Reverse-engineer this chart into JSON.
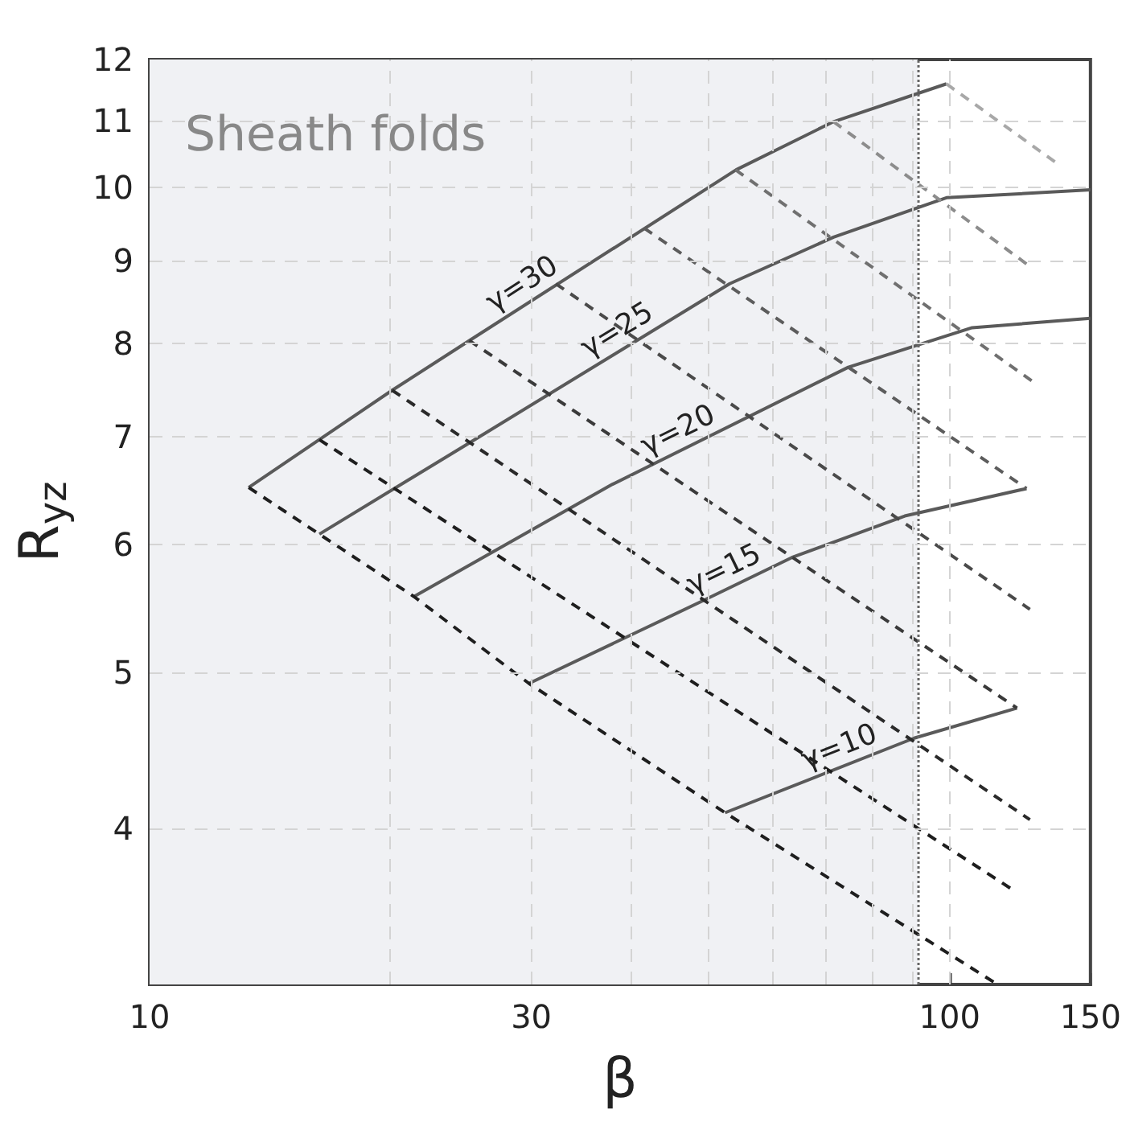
{
  "chart_data": {
    "type": "line",
    "xlabel": "β",
    "ylabel": "R$_{yz}$",
    "log": "xy",
    "xlim": [
      10,
      150
    ],
    "ylim": [
      3.2,
      12
    ],
    "xticks": [
      10,
      {
        "value": 20,
        "label": null
      },
      30,
      {
        "value": 40,
        "label": null
      },
      {
        "value": 50,
        "label": null
      },
      {
        "value": 60,
        "label": null
      },
      {
        "value": 70,
        "label": null
      },
      {
        "value": 80,
        "label": null
      },
      {
        "value": 90,
        "label": null
      },
      100,
      150
    ],
    "yticks": [
      4,
      5,
      6,
      7,
      8,
      9,
      10,
      11,
      12
    ],
    "grid": true,
    "legend": false,
    "marker": "none",
    "bands": [
      {
        "axis": "x",
        "from": 10,
        "to": 91.2,
        "label": "Sheath folds",
        "color": "#f0f1f4"
      }
    ],
    "ref_lines": [
      {
        "axis": "x",
        "value": 91.2,
        "color": "#666666",
        "line_style": "dotted"
      }
    ],
    "series": [
      {
        "name": "γ=30",
        "color": "#5a5a5a",
        "line_style": "solid",
        "x": [
          13.3,
          20.1,
          25.1,
          54.1,
          71.6,
          99.1
        ],
        "values": [
          6.51,
          7.48,
          8.03,
          10.25,
          10.98,
          11.59
        ]
      },
      {
        "name": "γ=25",
        "color": "#5a5a5a",
        "line_style": "solid",
        "x": [
          16.3,
          25.0,
          53.1,
          71.6,
          99.1,
          150
        ],
        "values": [
          6.09,
          6.93,
          8.71,
          9.31,
          9.85,
          9.96
        ]
      },
      {
        "name": "γ=20",
        "color": "#5a5a5a",
        "line_style": "solid",
        "x": [
          21.4,
          37.9,
          74.7,
          106.7,
          150
        ],
        "values": [
          5.57,
          6.54,
          7.73,
          8.18,
          8.29
        ]
      },
      {
        "name": "γ=15",
        "color": "#5a5a5a",
        "line_style": "solid",
        "x": [
          29.8,
          48.9,
          63.5,
          87.9,
          124.8
        ],
        "values": [
          4.92,
          5.53,
          5.89,
          6.25,
          6.5
        ]
      },
      {
        "name": "γ=10",
        "color": "#5a5a5a",
        "line_style": "solid",
        "x": [
          52.4,
          90.3,
          121.4
        ],
        "values": [
          4.09,
          4.55,
          4.75
        ]
      },
      {
        "color": "#1e1e1e",
        "line_style": "dashed",
        "x": [
          13.3,
          16.3,
          21.4,
          29.8,
          52.4,
          114.8
        ],
        "values": [
          6.51,
          6.09,
          5.57,
          4.92,
          4.09,
          3.2
        ]
      },
      {
        "color": "#1e1e1e",
        "line_style": "dashed",
        "x": [
          16.3,
          120.3
        ],
        "values": [
          6.97,
          3.66
        ]
      },
      {
        "color": "#2a2a2a",
        "line_style": "dashed",
        "x": [
          20.1,
          126.0
        ],
        "values": [
          7.48,
          4.05
        ]
      },
      {
        "color": "#3a3a3a",
        "line_style": "dashed",
        "x": [
          25.1,
          121.4
        ],
        "values": [
          8.03,
          4.75
        ]
      },
      {
        "color": "#4a4a4a",
        "line_style": "dashed",
        "x": [
          32.2,
          126.0
        ],
        "values": [
          8.71,
          5.47
        ]
      },
      {
        "color": "#5c5c5c",
        "line_style": "dashed",
        "x": [
          41.5,
          124.8
        ],
        "values": [
          9.43,
          6.5
        ]
      },
      {
        "color": "#707070",
        "line_style": "dashed",
        "x": [
          54.0,
          127.7
        ],
        "values": [
          10.25,
          7.56
        ]
      },
      {
        "color": "#8c8c8c",
        "line_style": "dashed",
        "x": [
          71.6,
          124.8
        ],
        "values": [
          10.98,
          8.96
        ]
      },
      {
        "color": "#a8a8a8",
        "line_style": "dashed",
        "x": [
          99.1,
          136.4
        ],
        "values": [
          11.59,
          10.34
        ]
      }
    ]
  }
}
